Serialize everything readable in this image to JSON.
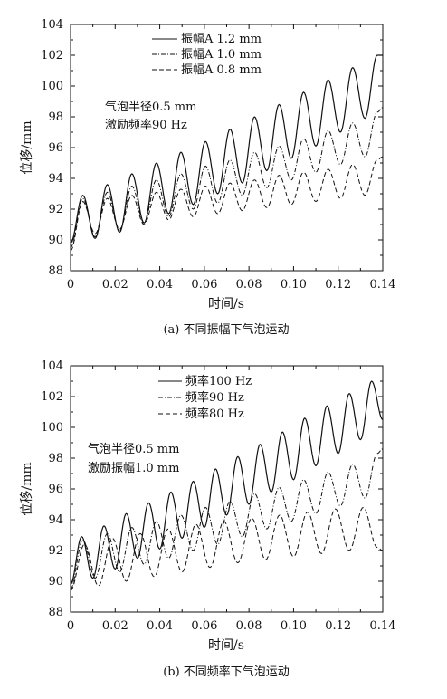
{
  "chart_data": [
    {
      "type": "line",
      "caption": "(a) 不同振幅下气泡运动",
      "xlabel": "时间/s",
      "ylabel": "位移/mm",
      "xlim": [
        0,
        0.14
      ],
      "ylim": [
        88,
        104
      ],
      "xticks": [
        "0",
        "0.02",
        "0.04",
        "0.06",
        "0.08",
        "0.10",
        "0.12",
        "0.14"
      ],
      "yticks": [
        "88",
        "90",
        "92",
        "94",
        "96",
        "98",
        "100",
        "102",
        "104"
      ],
      "grid": false,
      "legend_position": "top-center",
      "annotation_lines": [
        "气泡半径0.5 mm",
        "激励频率90 Hz"
      ],
      "series": [
        {
          "name": "振幅A 1.2 mm",
          "style": "solid",
          "frequency_hz": 90,
          "x": [
            0,
            0.0055,
            0.011,
            0.0165,
            0.022,
            0.0275,
            0.033,
            0.0385,
            0.044,
            0.0495,
            0.055,
            0.0605,
            0.066,
            0.0715,
            0.077,
            0.0825,
            0.088,
            0.0935,
            0.099,
            0.1045,
            0.11,
            0.1155,
            0.121,
            0.1265,
            0.132,
            0.1375,
            0.14
          ],
          "y": [
            89.8,
            92.9,
            90.1,
            93.6,
            90.5,
            94.3,
            91.1,
            95.0,
            91.7,
            95.7,
            92.3,
            96.4,
            93.0,
            97.2,
            93.7,
            98.0,
            94.5,
            98.8,
            95.3,
            99.6,
            96.1,
            100.4,
            97.0,
            101.2,
            97.9,
            102.0,
            102.0
          ]
        },
        {
          "name": "振幅A 1.0 mm",
          "style": "dashdot",
          "frequency_hz": 90,
          "x": [
            0,
            0.0055,
            0.011,
            0.0165,
            0.022,
            0.0275,
            0.033,
            0.0385,
            0.044,
            0.0495,
            0.055,
            0.0605,
            0.066,
            0.0715,
            0.077,
            0.0825,
            0.088,
            0.0935,
            0.099,
            0.1045,
            0.11,
            0.1155,
            0.121,
            0.1265,
            0.132,
            0.1375,
            0.14
          ],
          "y": [
            89.5,
            92.7,
            90.2,
            93.1,
            90.6,
            93.5,
            91.1,
            93.9,
            91.5,
            94.3,
            92.0,
            94.8,
            92.4,
            95.2,
            92.9,
            95.7,
            93.4,
            96.1,
            93.9,
            96.6,
            94.4,
            97.1,
            94.9,
            97.6,
            95.4,
            98.3,
            98.6
          ]
        },
        {
          "name": "振幅A 0.8 mm",
          "style": "dashed",
          "frequency_hz": 90,
          "x": [
            0,
            0.0055,
            0.011,
            0.0165,
            0.022,
            0.0275,
            0.033,
            0.0385,
            0.044,
            0.0495,
            0.055,
            0.0605,
            0.066,
            0.0715,
            0.077,
            0.0825,
            0.088,
            0.0935,
            0.099,
            0.1045,
            0.11,
            0.1155,
            0.121,
            0.1265,
            0.132,
            0.1375,
            0.14
          ],
          "y": [
            89.3,
            92.5,
            90.4,
            92.7,
            90.7,
            92.9,
            91.0,
            93.1,
            91.3,
            93.3,
            91.5,
            93.5,
            91.7,
            93.7,
            91.9,
            93.9,
            92.1,
            94.2,
            92.3,
            94.4,
            92.5,
            94.6,
            92.7,
            94.9,
            92.9,
            95.2,
            95.4
          ]
        }
      ]
    },
    {
      "type": "line",
      "caption": "(b) 不同频率下气泡运动",
      "xlabel": "时间/s",
      "ylabel": "位移/mm",
      "xlim": [
        0,
        0.14
      ],
      "ylim": [
        88,
        104
      ],
      "xticks": [
        "0",
        "0.02",
        "0.04",
        "0.06",
        "0.08",
        "0.10",
        "0.12",
        "0.14"
      ],
      "yticks": [
        "88",
        "90",
        "92",
        "94",
        "96",
        "98",
        "100",
        "102",
        "104"
      ],
      "grid": false,
      "legend_position": "top-center",
      "annotation_lines": [
        "气泡半径0.5 mm",
        "激励振幅1.0 mm"
      ],
      "series": [
        {
          "name": "频率100 Hz",
          "style": "solid",
          "frequency_hz": 100,
          "x": [
            0,
            0.005,
            0.01,
            0.015,
            0.02,
            0.025,
            0.03,
            0.035,
            0.04,
            0.045,
            0.05,
            0.055,
            0.06,
            0.065,
            0.07,
            0.075,
            0.08,
            0.085,
            0.09,
            0.095,
            0.1,
            0.105,
            0.11,
            0.115,
            0.12,
            0.125,
            0.13,
            0.135,
            0.14
          ],
          "y": [
            89.8,
            92.9,
            90.2,
            93.6,
            90.8,
            94.4,
            91.5,
            95.1,
            92.1,
            95.8,
            92.8,
            96.5,
            93.5,
            97.3,
            94.3,
            98.1,
            95.0,
            98.9,
            95.8,
            99.7,
            96.6,
            100.6,
            97.5,
            101.4,
            98.3,
            102.2,
            99.2,
            103.0,
            100.5
          ]
        },
        {
          "name": "频率90 Hz",
          "style": "dashdot",
          "frequency_hz": 90,
          "x": [
            0,
            0.0055,
            0.011,
            0.0165,
            0.022,
            0.0275,
            0.033,
            0.0385,
            0.044,
            0.0495,
            0.055,
            0.0605,
            0.066,
            0.0715,
            0.077,
            0.0825,
            0.088,
            0.0935,
            0.099,
            0.1045,
            0.11,
            0.1155,
            0.121,
            0.1265,
            0.132,
            0.1375,
            0.14
          ],
          "y": [
            89.5,
            92.7,
            90.2,
            93.1,
            90.6,
            93.5,
            91.1,
            93.9,
            91.5,
            94.3,
            92.0,
            94.8,
            92.4,
            95.2,
            92.9,
            95.7,
            93.4,
            96.1,
            93.9,
            96.6,
            94.4,
            97.1,
            94.9,
            97.6,
            95.4,
            98.3,
            98.6
          ]
        },
        {
          "name": "频率80 Hz",
          "style": "dashed",
          "frequency_hz": 80,
          "x": [
            0,
            0.00625,
            0.0125,
            0.01875,
            0.025,
            0.03125,
            0.0375,
            0.04375,
            0.05,
            0.05625,
            0.0625,
            0.06875,
            0.075,
            0.08125,
            0.0875,
            0.09375,
            0.1,
            0.10625,
            0.1125,
            0.11875,
            0.125,
            0.13125,
            0.1375,
            0.14
          ],
          "y": [
            89.4,
            92.4,
            89.7,
            92.8,
            90.0,
            93.1,
            90.3,
            93.4,
            90.6,
            93.7,
            90.9,
            93.9,
            91.2,
            94.1,
            91.4,
            94.3,
            91.6,
            94.5,
            91.8,
            94.7,
            92.0,
            94.8,
            92.2,
            92.0
          ]
        }
      ]
    }
  ]
}
